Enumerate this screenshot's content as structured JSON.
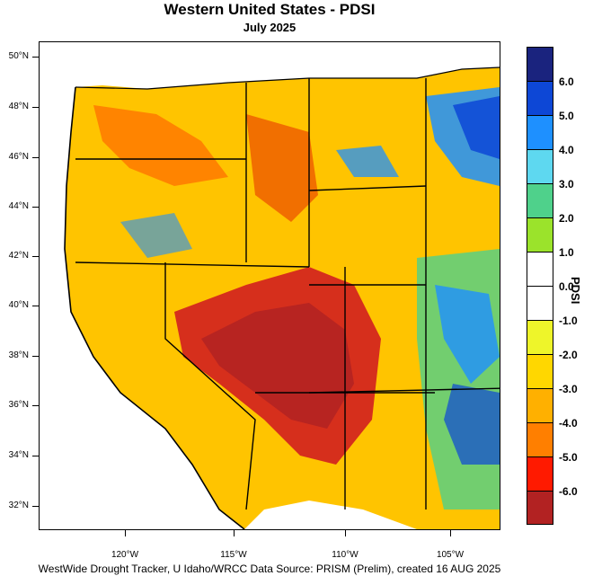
{
  "title": "Western United States - PDSI",
  "subtitle": "July 2025",
  "footer": "WestWide Drought Tracker, U Idaho/WRCC Data Source: PRISM (Prelim), created 16 AUG 2025",
  "legend": {
    "title": "PDSI",
    "labels": [
      "6.0",
      "5.0",
      "4.0",
      "3.0",
      "2.0",
      "1.0",
      "0.0",
      "-1.0",
      "-2.0",
      "-3.0",
      "-4.0",
      "-5.0",
      "-6.0"
    ],
    "colors": [
      "#1a237e",
      "#0d47d6",
      "#1e90ff",
      "#5ed8f0",
      "#4fd18b",
      "#9be32b",
      "#ffffff",
      "#ffffff",
      "#eef52a",
      "#ffd700",
      "#ffb000",
      "#ff7f00",
      "#ff1a00",
      "#b22222"
    ]
  },
  "lat_labels": [
    "50°N",
    "48°N",
    "46°N",
    "44°N",
    "42°N",
    "40°N",
    "38°N",
    "36°N",
    "34°N",
    "32°N"
  ],
  "lon_labels": [
    "120°W",
    "115°W",
    "110°W",
    "105°W"
  ]
}
